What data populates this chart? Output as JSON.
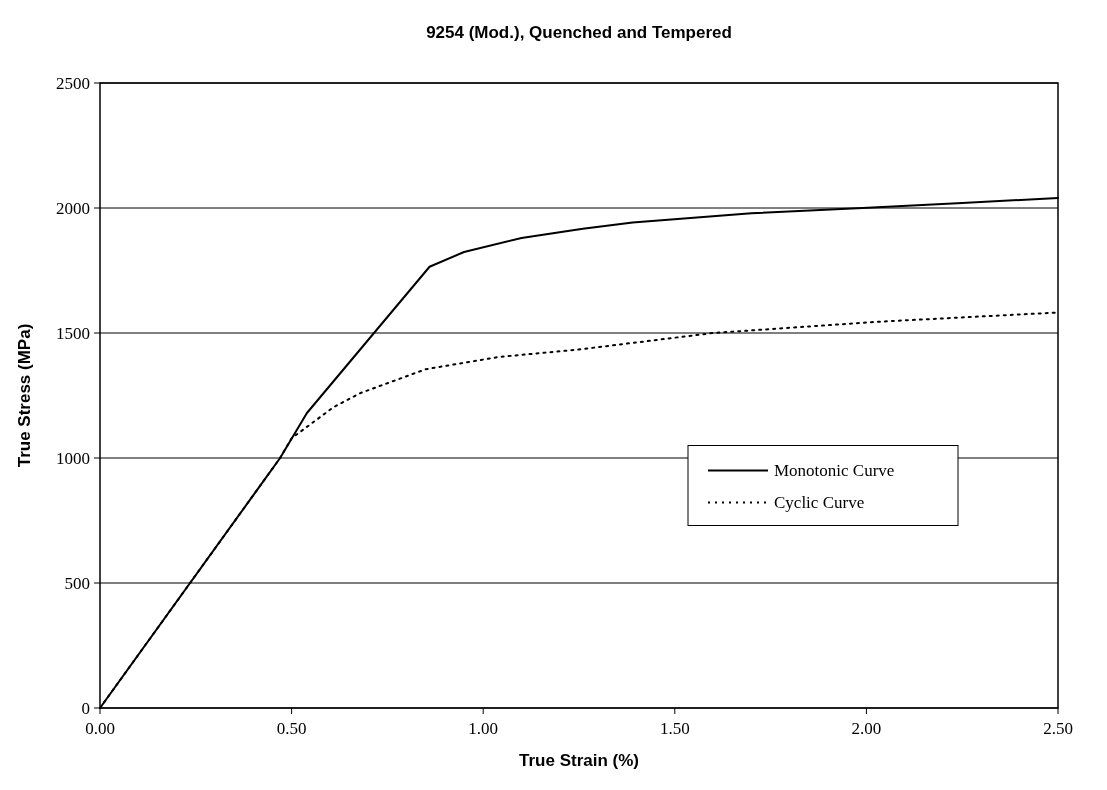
{
  "chart_data": {
    "type": "line",
    "title": "9254 (Mod.), Quenched and Tempered",
    "xlabel": "True Strain (%)",
    "ylabel": "True Stress (MPa)",
    "xlim": [
      0,
      2.5
    ],
    "xticks": [
      {
        "value": 0,
        "label": "0.00"
      },
      {
        "value": 0.5,
        "label": "0.50"
      },
      {
        "value": 1,
        "label": "1.00"
      },
      {
        "value": 1.5,
        "label": "1.50"
      },
      {
        "value": 2,
        "label": "2.00"
      },
      {
        "value": 2.5,
        "label": "2.50"
      }
    ],
    "ylim": [
      0,
      2500
    ],
    "yticks": [
      0,
      500,
      1000,
      1500,
      2000,
      2500
    ],
    "grid": "y",
    "legend": "right",
    "series": [
      {
        "name": "Monotonic Curve",
        "color": "#000000",
        "line_style": "solid",
        "x": [
          0,
          0.47,
          0.54,
          0.86,
          0.95,
          1.1,
          1.26,
          1.39,
          1.7,
          1.99,
          2.25,
          2.5
        ],
        "values": [
          0,
          1000,
          1180,
          1765,
          1824,
          1880,
          1917,
          1942,
          1979,
          2000,
          2020,
          2040
        ]
      },
      {
        "name": "Cyclic Curve",
        "color": "#000000",
        "line_style": "dotted",
        "x": [
          0,
          0.47,
          0.5,
          0.61,
          0.68,
          0.85,
          1.04,
          1.25,
          1.6,
          2.03,
          2.5
        ],
        "values": [
          0,
          1000,
          1079,
          1204,
          1260,
          1355,
          1404,
          1434,
          1500,
          1545,
          1582
        ]
      }
    ]
  }
}
